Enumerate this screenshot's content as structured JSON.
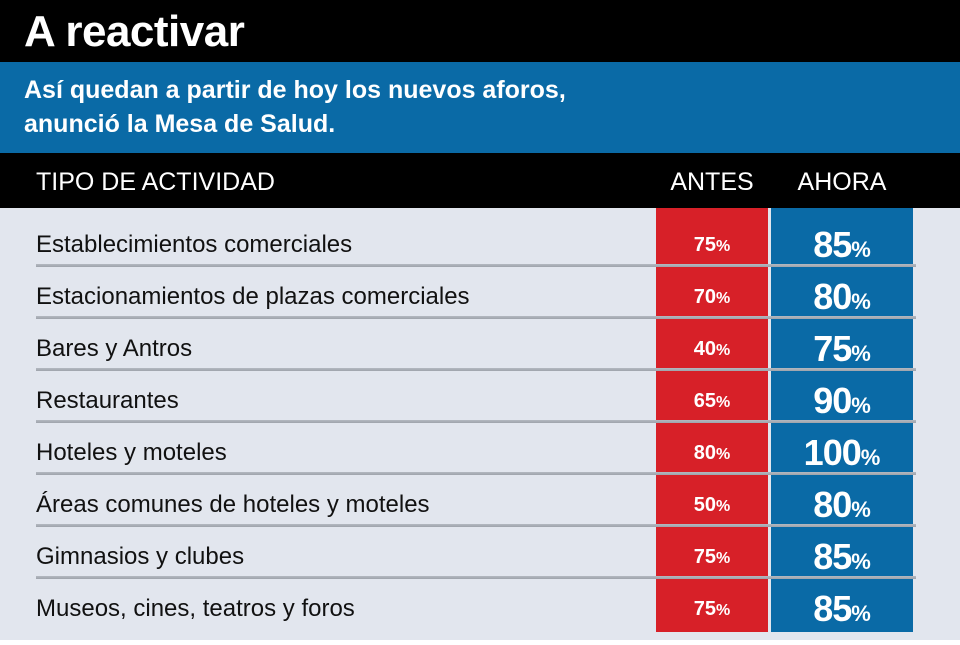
{
  "header": {
    "title": "A reactivar",
    "subtitle_line1": "Así quedan a partir de hoy los nuevos aforos,",
    "subtitle_line2": "anunció la Mesa de Salud."
  },
  "table": {
    "columns": [
      "TIPO DE ACTIVIDAD",
      "ANTES",
      "AHORA"
    ],
    "unit": "%",
    "rows": [
      {
        "activity": "Establecimientos comerciales",
        "antes": "75",
        "ahora": "85"
      },
      {
        "activity": "Estacionamientos de plazas comerciales",
        "antes": "70",
        "ahora": "80"
      },
      {
        "activity": "Bares y Antros",
        "antes": "40",
        "ahora": "75"
      },
      {
        "activity": "Restaurantes",
        "antes": "65",
        "ahora": "90"
      },
      {
        "activity": "Hoteles y moteles",
        "antes": "80",
        "ahora": "100"
      },
      {
        "activity": "Áreas comunes de hoteles y moteles",
        "antes": "50",
        "ahora": "80"
      },
      {
        "activity": "Gimnasios y clubes",
        "antes": "75",
        "ahora": "85"
      },
      {
        "activity": "Museos, cines, teatros y foros",
        "antes": "75",
        "ahora": "85"
      }
    ]
  },
  "colors": {
    "title_bg": "#000000",
    "subtitle_bg": "#0a6aa6",
    "antes_column": "#d72028",
    "ahora_column": "#0a6aa6",
    "rows_bg": "#e2e6ee"
  }
}
